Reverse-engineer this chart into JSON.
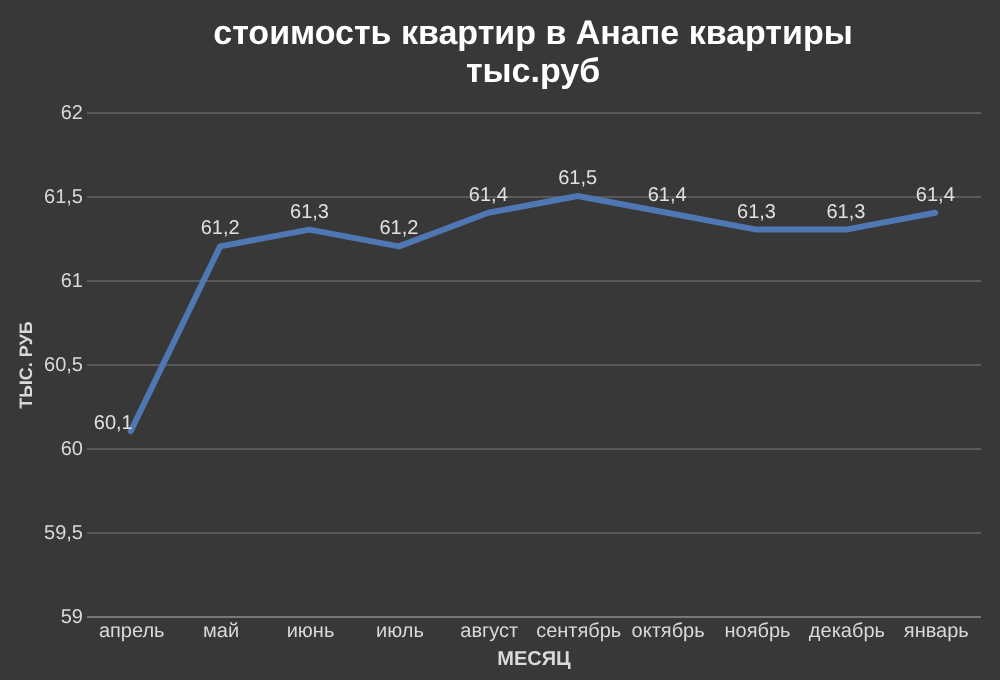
{
  "chart_data": {
    "type": "line",
    "title": "стоимость  квартир  в Анапе квартиры\nтыс.руб",
    "xlabel": "МЕСЯЦ",
    "ylabel": "ТЫС. РУБ",
    "categories": [
      "апрель",
      "май",
      "июнь",
      "июль",
      "август",
      "сентябрь",
      "октябрь",
      "ноябрь",
      "декабрь",
      "январь"
    ],
    "series": [
      {
        "color": "#4f77b3",
        "values": [
          60.1,
          61.2,
          61.3,
          61.2,
          61.4,
          61.5,
          61.4,
          61.3,
          61.3,
          61.4
        ],
        "value_labels": [
          "60,1",
          "61,2",
          "61,3",
          "61,2",
          "61,4",
          "61,5",
          "61,4",
          "61,3",
          "61,3",
          "61,4"
        ]
      }
    ],
    "ylim": [
      59,
      62
    ],
    "yticks": [
      {
        "value": 59,
        "label": "59"
      },
      {
        "value": 59.5,
        "label": "59,5"
      },
      {
        "value": 60,
        "label": "60"
      },
      {
        "value": 60.5,
        "label": "60,5"
      },
      {
        "value": 61,
        "label": "61"
      },
      {
        "value": 61.5,
        "label": "61,5"
      },
      {
        "value": 62,
        "label": "62"
      }
    ],
    "grid": "y",
    "marker": "none",
    "line_style": "solid"
  }
}
